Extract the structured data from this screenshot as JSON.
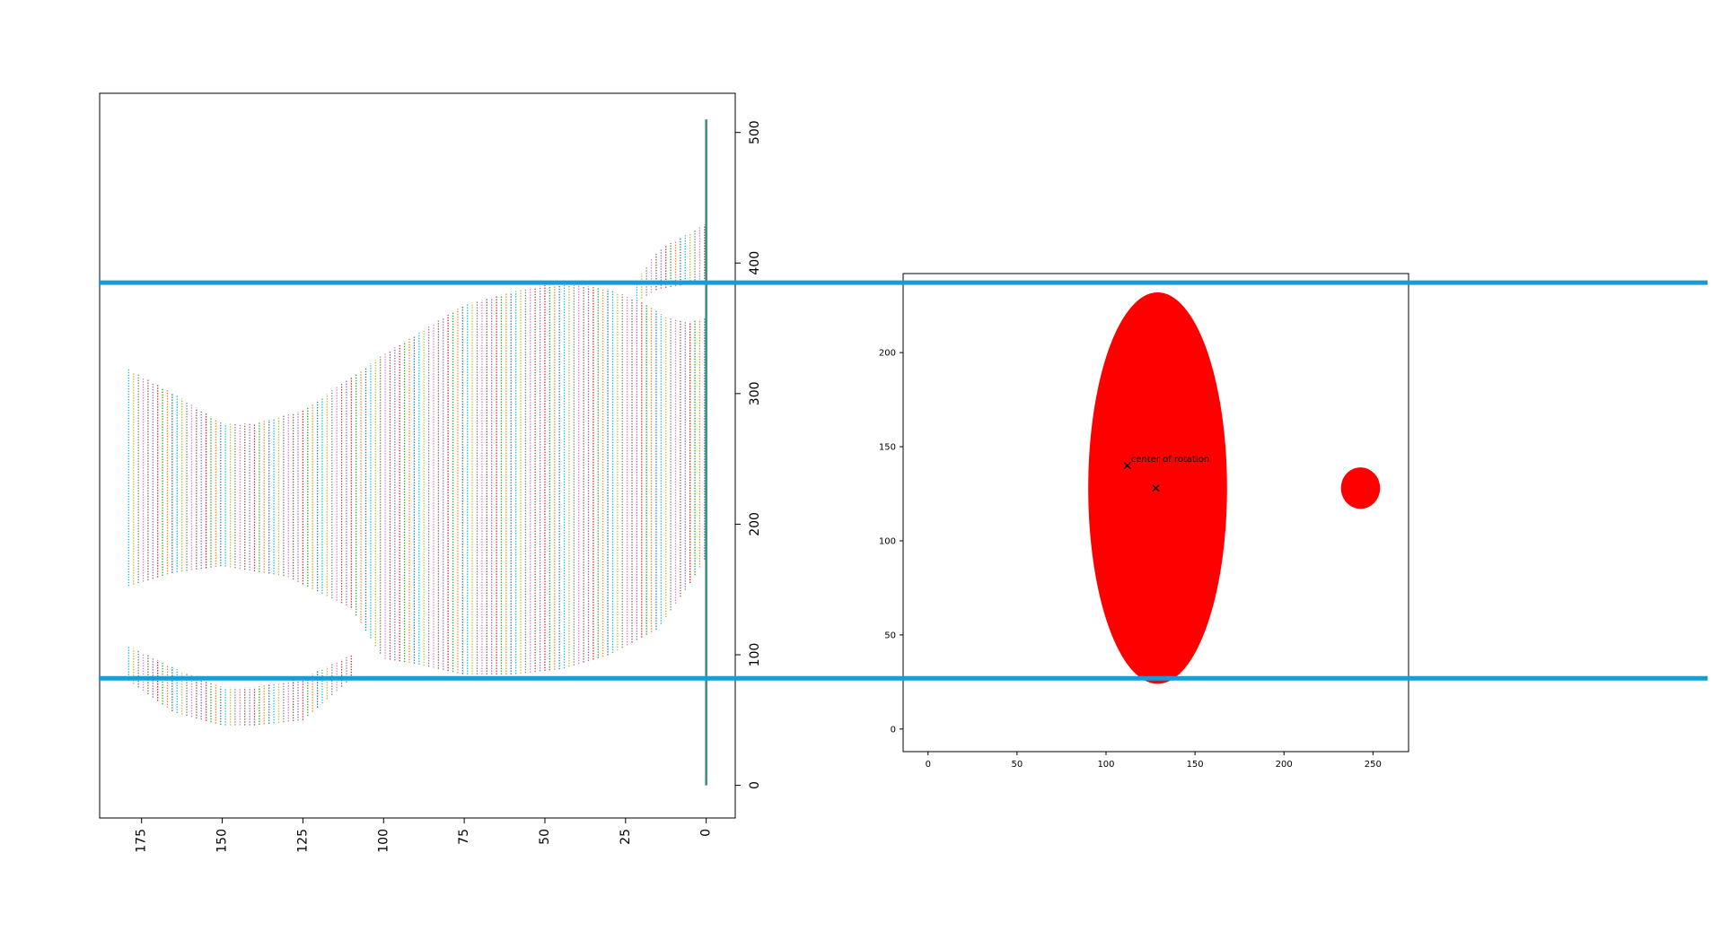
{
  "colors": {
    "background": "#ffffff",
    "sinogram_palette": [
      "#1f77b4",
      "#ff7f0e",
      "#2ca02c",
      "#d62728",
      "#9467bd",
      "#8c564b",
      "#e377c2",
      "#7f7f7f",
      "#bcbd22",
      "#17becf"
    ],
    "baseline_line": "#3a8f7a",
    "phantom_fill": "#ff0000",
    "guide_line": "#1a9bd7",
    "marker": "#000000"
  },
  "chart_data": [
    {
      "type": "scatter",
      "description_of_marks": "dense columns of small colored points (one column per projection angle), rotated 90 degrees",
      "title": "",
      "xlabel": "",
      "ylabel": "",
      "x_ticks": [
        "175",
        "150",
        "125",
        "100",
        "75",
        "50",
        "25",
        "0"
      ],
      "y_ticks": [
        "0",
        "100",
        "200",
        "300",
        "400",
        "500"
      ],
      "xlim": [
        188,
        -9
      ],
      "ylim": [
        -25,
        530
      ],
      "grid": false,
      "upper_lobe": {
        "x_range": [
          0,
          180
        ],
        "bottom": [
          [
            180,
            152
          ],
          [
            165,
            163
          ],
          [
            150,
            168
          ],
          [
            130,
            160
          ],
          [
            110,
            136
          ],
          [
            100,
            97
          ],
          [
            90,
            93
          ],
          [
            75,
            85
          ],
          [
            60,
            85
          ],
          [
            45,
            89
          ],
          [
            30,
            100
          ],
          [
            15,
            120
          ],
          [
            5,
            155
          ],
          [
            0,
            175
          ]
        ],
        "top": [
          [
            180,
            320
          ],
          [
            165,
            300
          ],
          [
            150,
            277
          ],
          [
            140,
            277
          ],
          [
            125,
            287
          ],
          [
            100,
            330
          ],
          [
            75,
            368
          ],
          [
            60,
            378
          ],
          [
            50,
            383
          ],
          [
            40,
            383
          ],
          [
            30,
            380
          ],
          [
            20,
            370
          ],
          [
            12,
            358
          ],
          [
            5,
            355
          ],
          [
            0,
            358
          ]
        ]
      },
      "lower_lobe": {
        "x_range": [
          0,
          180
        ],
        "bottom": [
          [
            180,
            82
          ],
          [
            165,
            56
          ],
          [
            150,
            46
          ],
          [
            140,
            46
          ],
          [
            125,
            50
          ],
          [
            110,
            82
          ]
        ],
        "top": [
          [
            180,
            108
          ],
          [
            165,
            90
          ],
          [
            150,
            75
          ],
          [
            140,
            75
          ],
          [
            125,
            82
          ],
          [
            110,
            100
          ]
        ]
      },
      "upper_right_band": {
        "bottom": [
          [
            0,
            386
          ],
          [
            15,
            380
          ],
          [
            22,
            370
          ]
        ],
        "top": [
          [
            0,
            430
          ],
          [
            15,
            410
          ],
          [
            22,
            385
          ]
        ]
      },
      "baseline_column": {
        "x": 0,
        "y_range": [
          0,
          510
        ]
      }
    },
    {
      "type": "image",
      "description_of_marks": "red filled ellipse and small red circle on white background, two x markers",
      "title": "",
      "xlabel": "",
      "ylabel": "",
      "x_ticks": [
        "0",
        "50",
        "100",
        "150",
        "200",
        "250"
      ],
      "y_ticks": [
        "0",
        "50",
        "100",
        "150",
        "200"
      ],
      "xlim": [
        -14,
        270
      ],
      "ylim": [
        -12,
        242
      ],
      "grid": false,
      "ellipse": {
        "cx": 129,
        "cy": 128,
        "rx": 39,
        "ry": 104
      },
      "circle": {
        "cx": 243,
        "cy": 128,
        "r": 11
      },
      "markers": [
        {
          "x": 112,
          "y": 140,
          "label": "center of rotation"
        },
        {
          "x": 128,
          "y": 128,
          "label": ""
        }
      ],
      "annotation": "center of rotation"
    }
  ],
  "guide_lines": [
    {
      "name": "upper",
      "y_value_left_plot": 385
    },
    {
      "name": "lower",
      "y_value_left_plot": 82
    }
  ]
}
